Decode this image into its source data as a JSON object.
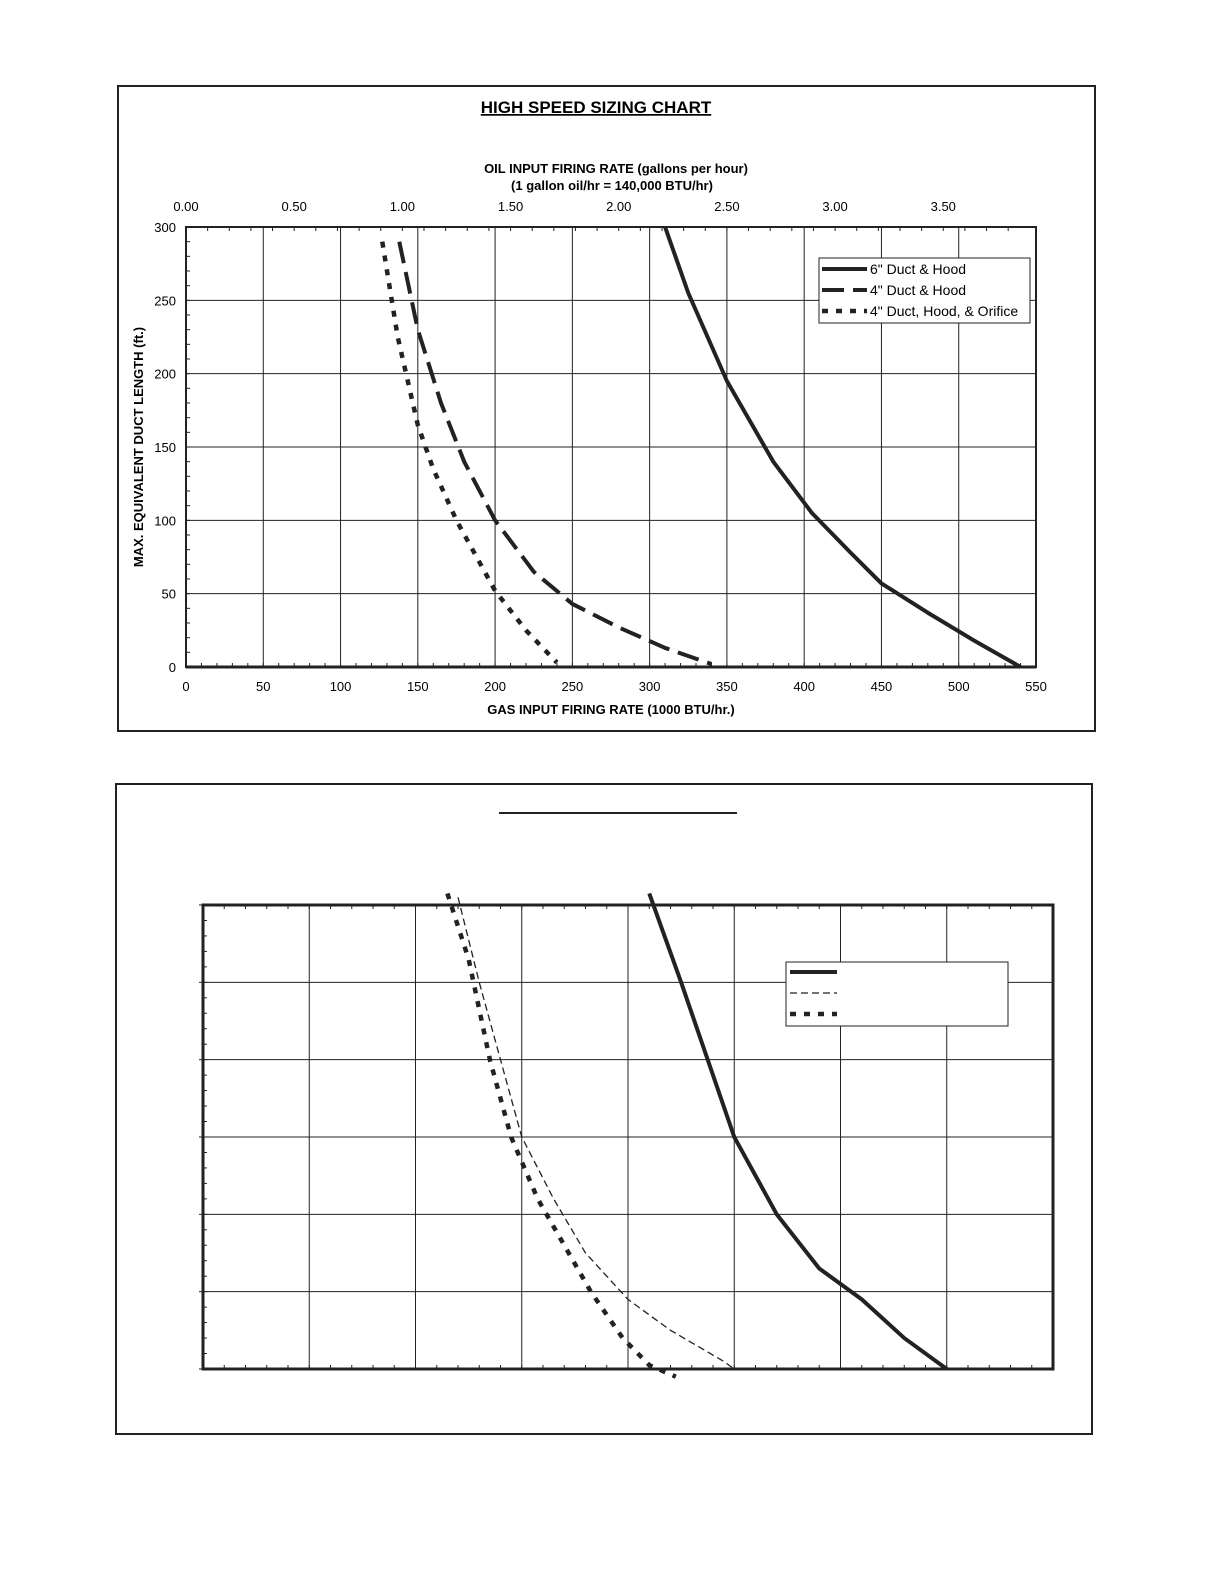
{
  "chart_data": [
    {
      "type": "line",
      "title": "HIGH SPEED SIZING CHART",
      "top_axis_title_line1": "OIL INPUT FIRING RATE (gallons per hour)",
      "top_axis_title_line2": "(1 gallon oil/hr = 140,000 BTU/hr)",
      "xlabel": "GAS INPUT FIRING RATE (1000 BTU/hr.)",
      "ylabel": "MAX. EQUIVALENT DUCT LENGTH (ft.)",
      "xlim": [
        0,
        550
      ],
      "ylim": [
        0,
        300
      ],
      "x_ticks": [
        "0",
        "50",
        "100",
        "150",
        "200",
        "250",
        "300",
        "350",
        "400",
        "450",
        "500",
        "550"
      ],
      "y_ticks": [
        "0",
        "50",
        "100",
        "150",
        "200",
        "250",
        "300"
      ],
      "top_ticks": [
        "0.00",
        "0.50",
        "1.00",
        "1.50",
        "2.00",
        "2.50",
        "3.00",
        "3.50"
      ],
      "top_tick_values": [
        0.0,
        0.5,
        1.0,
        1.5,
        2.0,
        2.5,
        3.0,
        3.5
      ],
      "oil_btu_per_gallon": 140,
      "grid": true,
      "legend_position": "top-right",
      "series": [
        {
          "name": "6\" Duct & Hood",
          "style": "solid",
          "x": [
            310,
            325,
            350,
            380,
            405,
            430,
            450,
            480,
            510,
            540
          ],
          "y": [
            300,
            255,
            195,
            140,
            105,
            78,
            57,
            37,
            18,
            0
          ]
        },
        {
          "name": "4\" Duct & Hood",
          "style": "dash",
          "x": [
            138,
            150,
            165,
            180,
            200,
            225,
            250,
            280,
            310,
            340
          ],
          "y": [
            290,
            230,
            180,
            140,
            100,
            65,
            43,
            27,
            13,
            2
          ]
        },
        {
          "name": "4\" Duct, Hood, & Orifice",
          "style": "dot",
          "x": [
            127,
            137,
            150,
            160,
            175,
            200,
            220,
            240
          ],
          "y": [
            290,
            225,
            165,
            135,
            100,
            52,
            25,
            3
          ]
        }
      ]
    },
    {
      "type": "line",
      "title": "",
      "xlim": [
        0,
        8
      ],
      "ylim": [
        0,
        6
      ],
      "grid": true,
      "legend_position": "top-right",
      "series": [
        {
          "name": "",
          "style": "solid",
          "x": [
            4.2,
            4.5,
            5.0,
            5.4,
            5.8,
            6.2,
            6.6,
            7.0
          ],
          "y": [
            6.15,
            5.0,
            3.0,
            2.0,
            1.3,
            0.9,
            0.4,
            0.0
          ]
        },
        {
          "name": "",
          "style": "thin-dash",
          "x": [
            2.4,
            2.6,
            2.8,
            3.0,
            3.3,
            3.6,
            4.0,
            4.4,
            4.9,
            5.0
          ],
          "y": [
            6.1,
            5.0,
            4.0,
            3.0,
            2.2,
            1.5,
            0.9,
            0.5,
            0.1,
            0.0
          ]
        },
        {
          "name": "",
          "style": "dot",
          "x": [
            2.3,
            2.5,
            2.7,
            2.9,
            3.15,
            3.4,
            3.65,
            3.95,
            4.2,
            4.45
          ],
          "y": [
            6.15,
            5.3,
            4.0,
            3.0,
            2.2,
            1.6,
            1.0,
            0.4,
            0.05,
            -0.1
          ]
        }
      ]
    }
  ]
}
